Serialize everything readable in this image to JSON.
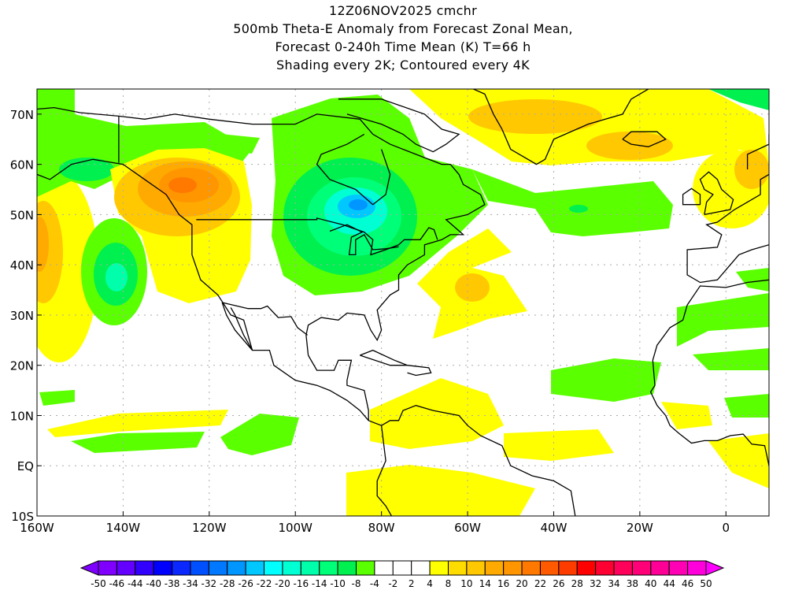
{
  "title": {
    "line1": "12Z06NOV2025 cmchr",
    "line2": "500mb Theta-E Anomaly from Forecast Zonal Mean,",
    "line3": "Forecast 0-240h Time Mean (K) T=66 h",
    "line4": "Shading every 2K; Contoured every 4K"
  },
  "map": {
    "lon_range": [
      -160,
      10
    ],
    "lat_range": [
      -10,
      75
    ],
    "lon_labels": [
      {
        "lon": -160,
        "text": "160W"
      },
      {
        "lon": -140,
        "text": "140W"
      },
      {
        "lon": -120,
        "text": "120W"
      },
      {
        "lon": -100,
        "text": "100W"
      },
      {
        "lon": -80,
        "text": "80W"
      },
      {
        "lon": -60,
        "text": "60W"
      },
      {
        "lon": -40,
        "text": "40W"
      },
      {
        "lon": -20,
        "text": "20W"
      },
      {
        "lon": 0,
        "text": "0"
      }
    ],
    "lat_labels": [
      {
        "lat": 70,
        "text": "70N"
      },
      {
        "lat": 60,
        "text": "60N"
      },
      {
        "lat": 50,
        "text": "50N"
      },
      {
        "lat": 40,
        "text": "40N"
      },
      {
        "lat": 30,
        "text": "30N"
      },
      {
        "lat": 20,
        "text": "20N"
      },
      {
        "lat": 10,
        "text": "10N"
      },
      {
        "lat": 0,
        "text": "EQ"
      },
      {
        "lat": -10,
        "text": "10S"
      }
    ]
  },
  "colorbar": {
    "labels": [
      "-50",
      "-46",
      "-44",
      "-40",
      "-38",
      "-34",
      "-32",
      "-28",
      "-26",
      "-22",
      "-20",
      "-16",
      "-14",
      "-10",
      "-8",
      "-4",
      "-2",
      "2",
      "4",
      "8",
      "10",
      "14",
      "16",
      "20",
      "22",
      "26",
      "28",
      "32",
      "34",
      "38",
      "40",
      "44",
      "46",
      "50"
    ],
    "colors": [
      "#8000ff",
      "#6400ff",
      "#3200ff",
      "#0000ff",
      "#0a28ff",
      "#0050ff",
      "#0078ff",
      "#0096ff",
      "#00c8ff",
      "#00ffff",
      "#00ffd2",
      "#00ffaa",
      "#00ff78",
      "#00f050",
      "#5aff00",
      "#ffffff",
      "#ffffff",
      "#ffffff",
      "#ffff00",
      "#ffdc00",
      "#ffc800",
      "#ffaa00",
      "#ff9600",
      "#ff7800",
      "#ff5a00",
      "#ff3c00",
      "#ff0000",
      "#ff0032",
      "#ff005a",
      "#ff0078",
      "#ff0096",
      "#ff00b4",
      "#ff00dc"
    ],
    "low_color": "#8000ff",
    "high_color": "#ff00ff"
  }
}
